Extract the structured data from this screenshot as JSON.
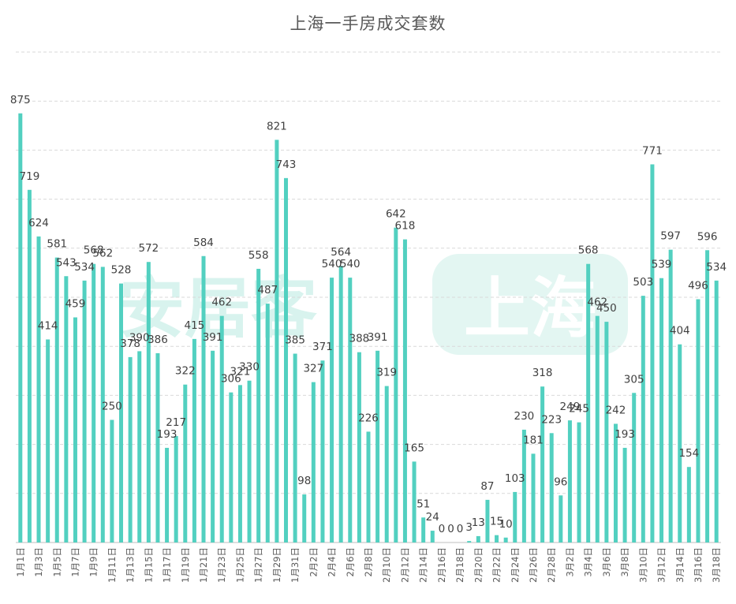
{
  "chart_data": {
    "type": "bar",
    "title": "上海一手房成交套数",
    "xlabel": "",
    "ylabel": "",
    "ylim": [
      0,
      1000
    ],
    "grid": true,
    "legend": "none",
    "bar_color": "#52d0c0",
    "watermark": [
      "安居客",
      "上海"
    ],
    "categories": [
      "1月1日",
      "1月2日",
      "1月3日",
      "1月4日",
      "1月5日",
      "1月6日",
      "1月7日",
      "1月8日",
      "1月9日",
      "1月10日",
      "1月11日",
      "1月12日",
      "1月13日",
      "1月14日",
      "1月15日",
      "1月16日",
      "1月17日",
      "1月18日",
      "1月19日",
      "1月20日",
      "1月21日",
      "1月22日",
      "1月23日",
      "1月24日",
      "1月25日",
      "1月26日",
      "1月27日",
      "1月28日",
      "1月29日",
      "1月30日",
      "1月31日",
      "2月1日",
      "2月2日",
      "2月3日",
      "2月4日",
      "2月5日",
      "2月6日",
      "2月7日",
      "2月8日",
      "2月9日",
      "2月10日",
      "2月11日",
      "2月12日",
      "2月13日",
      "2月14日",
      "2月15日",
      "2月16日",
      "2月17日",
      "2月18日",
      "2月19日",
      "2月20日",
      "2月21日",
      "2月22日",
      "2月23日",
      "2月24日",
      "2月25日",
      "2月26日",
      "2月27日",
      "2月28日",
      "3月1日",
      "3月2日",
      "3月3日",
      "3月4日",
      "3月5日",
      "3月6日",
      "3月7日",
      "3月8日",
      "3月9日",
      "3月10日",
      "3月11日",
      "3月12日",
      "3月13日",
      "3月14日",
      "3月15日",
      "3月16日",
      "3月17日",
      "3月18日"
    ],
    "values": [
      875,
      719,
      624,
      414,
      581,
      543,
      459,
      534,
      568,
      562,
      250,
      528,
      378,
      390,
      572,
      386,
      193,
      217,
      322,
      415,
      584,
      391,
      462,
      306,
      321,
      330,
      558,
      487,
      821,
      743,
      385,
      98,
      327,
      371,
      540,
      564,
      540,
      388,
      226,
      391,
      319,
      642,
      618,
      165,
      51,
      24,
      0,
      0,
      0,
      3,
      13,
      87,
      15,
      10,
      103,
      230,
      181,
      318,
      223,
      96,
      249,
      245,
      568,
      462,
      450,
      242,
      193,
      305,
      503,
      771,
      539,
      597,
      404,
      154,
      496,
      596,
      534
    ]
  }
}
